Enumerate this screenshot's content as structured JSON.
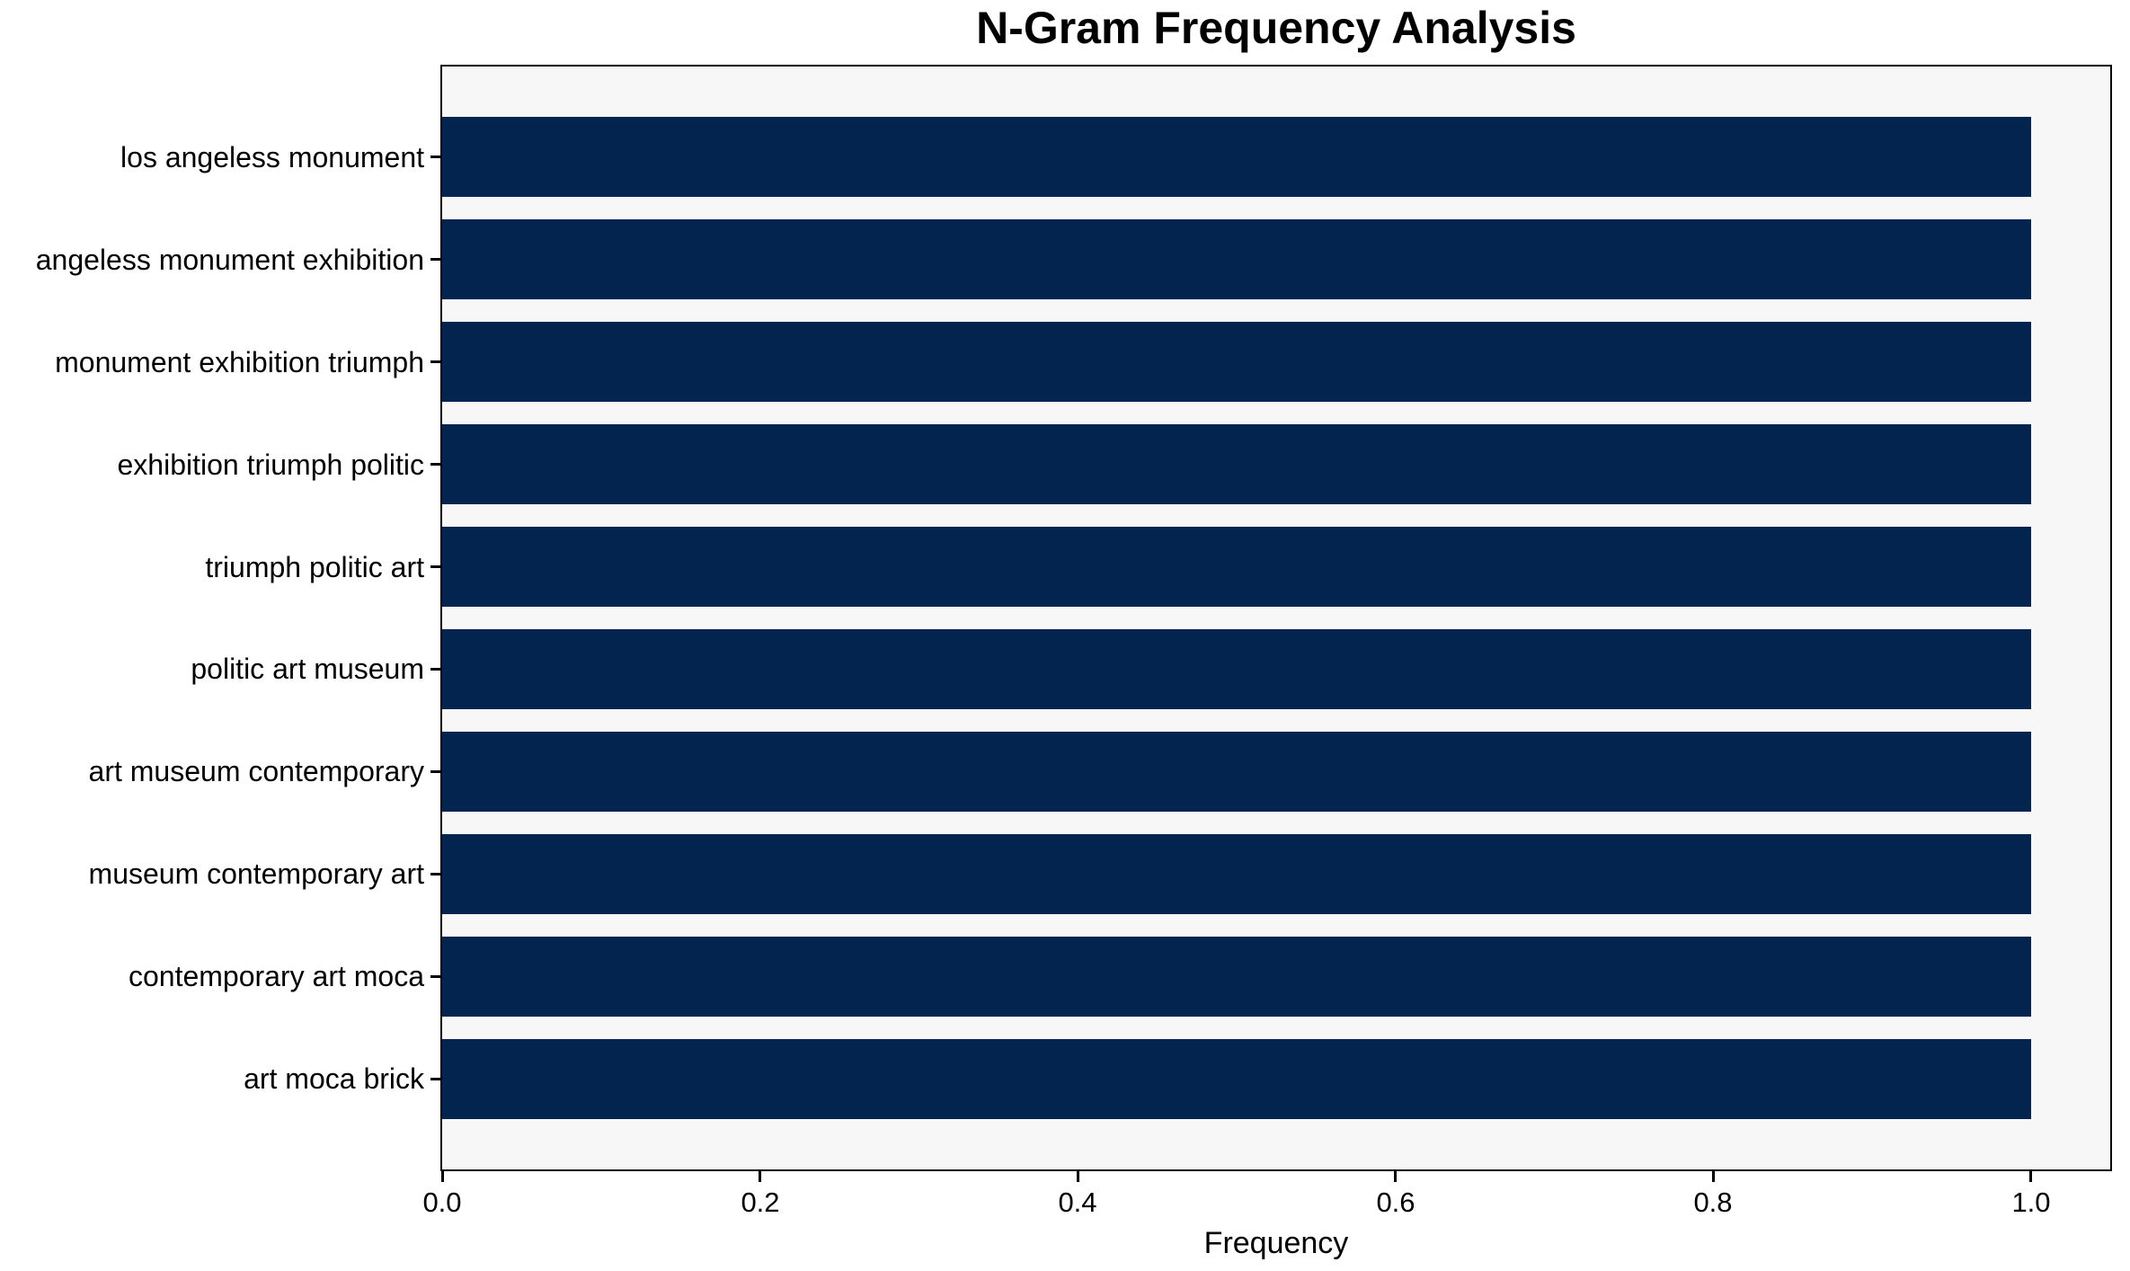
{
  "chart_data": {
    "type": "bar",
    "orientation": "horizontal",
    "title": "N-Gram Frequency Analysis",
    "xlabel": "Frequency",
    "ylabel": "",
    "categories": [
      "los angeless monument",
      "angeless monument exhibition",
      "monument exhibition triumph",
      "exhibition triumph politic",
      "triumph politic art",
      "politic art museum",
      "art museum contemporary",
      "museum contemporary art",
      "contemporary art moca",
      "art moca brick"
    ],
    "values": [
      1.0,
      1.0,
      1.0,
      1.0,
      1.0,
      1.0,
      1.0,
      1.0,
      1.0,
      1.0
    ],
    "xlim": [
      0,
      1.05
    ],
    "xticks": {
      "values": [
        0.0,
        0.2,
        0.4,
        0.6,
        0.8,
        1.0
      ],
      "labels": [
        "0.0",
        "0.2",
        "0.4",
        "0.6",
        "0.8",
        "1.0"
      ]
    },
    "grid": false,
    "legend": null,
    "colors": {
      "bar": "#02244e",
      "plot_background": "#f7f7f8",
      "figure_background": "#ffffff",
      "text": "#000000",
      "spine": "#000000"
    }
  }
}
